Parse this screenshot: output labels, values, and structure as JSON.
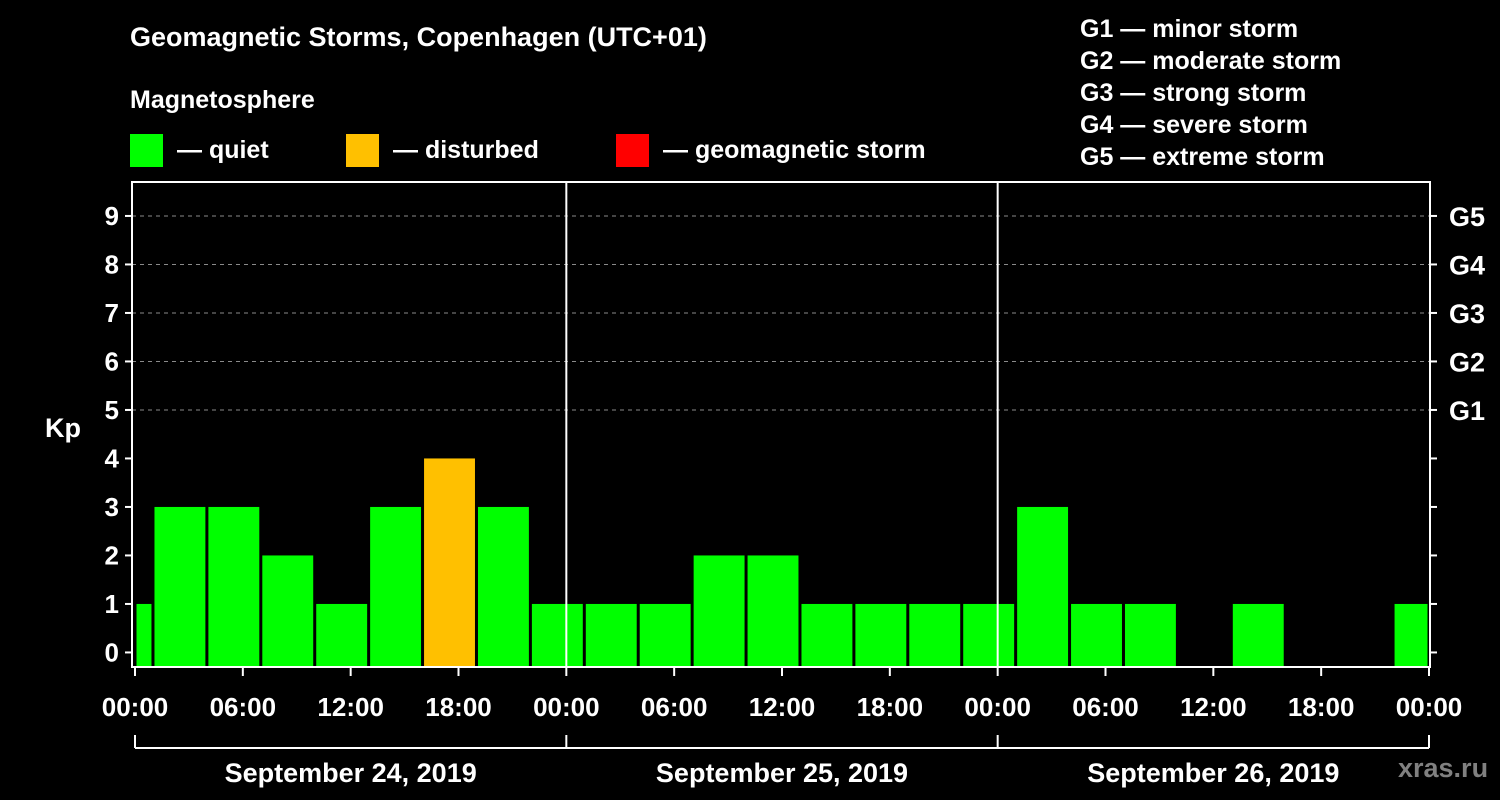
{
  "title": "Geomagnetic Storms, Copenhagen (UTC+01)",
  "legend": {
    "heading": "Magnetosphere",
    "items": [
      {
        "label": "— quiet",
        "color": "#00ff00"
      },
      {
        "label": "— disturbed",
        "color": "#ffc000"
      },
      {
        "label": "— geomagnetic storm",
        "color": "#ff0000"
      }
    ]
  },
  "storm_scale": [
    "G1 — minor storm",
    "G2 — moderate storm",
    "G3 — strong storm",
    "G4 — severe storm",
    "G5 — extreme storm"
  ],
  "watermark": "xras.ru",
  "chart_data": {
    "type": "bar",
    "ylabel": "Kp",
    "ylim": [
      -0.3,
      9.7
    ],
    "yticks": [
      0,
      1,
      2,
      3,
      4,
      5,
      6,
      7,
      8,
      9
    ],
    "right_axis_labels": [
      {
        "kp": 5,
        "label": "G1"
      },
      {
        "kp": 6,
        "label": "G2"
      },
      {
        "kp": 7,
        "label": "G3"
      },
      {
        "kp": 8,
        "label": "G4"
      },
      {
        "kp": 9,
        "label": "G5"
      }
    ],
    "xlim_hours": [
      0,
      72
    ],
    "x_tick_labels": [
      "00:00",
      "06:00",
      "12:00",
      "18:00",
      "00:00",
      "06:00",
      "12:00",
      "18:00",
      "00:00",
      "06:00",
      "12:00",
      "18:00",
      "00:00"
    ],
    "day_labels": [
      "September 24, 2019",
      "September 25, 2019",
      "September 26, 2019"
    ],
    "grid": "dashed horizontal at Kp 5-9",
    "bars": [
      {
        "start": 0,
        "end": 1,
        "kp": 1,
        "status": "quiet"
      },
      {
        "start": 1,
        "end": 4,
        "kp": 3,
        "status": "quiet"
      },
      {
        "start": 4,
        "end": 7,
        "kp": 3,
        "status": "quiet"
      },
      {
        "start": 7,
        "end": 10,
        "kp": 2,
        "status": "quiet"
      },
      {
        "start": 10,
        "end": 13,
        "kp": 1,
        "status": "quiet"
      },
      {
        "start": 13,
        "end": 16,
        "kp": 3,
        "status": "quiet"
      },
      {
        "start": 16,
        "end": 19,
        "kp": 4,
        "status": "disturbed"
      },
      {
        "start": 19,
        "end": 22,
        "kp": 3,
        "status": "quiet"
      },
      {
        "start": 22,
        "end": 25,
        "kp": 1,
        "status": "quiet"
      },
      {
        "start": 25,
        "end": 28,
        "kp": 1,
        "status": "quiet"
      },
      {
        "start": 28,
        "end": 31,
        "kp": 1,
        "status": "quiet"
      },
      {
        "start": 31,
        "end": 34,
        "kp": 2,
        "status": "quiet"
      },
      {
        "start": 34,
        "end": 37,
        "kp": 2,
        "status": "quiet"
      },
      {
        "start": 37,
        "end": 40,
        "kp": 1,
        "status": "quiet"
      },
      {
        "start": 40,
        "end": 43,
        "kp": 1,
        "status": "quiet"
      },
      {
        "start": 43,
        "end": 46,
        "kp": 1,
        "status": "quiet"
      },
      {
        "start": 46,
        "end": 49,
        "kp": 1,
        "status": "quiet"
      },
      {
        "start": 49,
        "end": 52,
        "kp": 3,
        "status": "quiet"
      },
      {
        "start": 52,
        "end": 55,
        "kp": 1,
        "status": "quiet"
      },
      {
        "start": 55,
        "end": 58,
        "kp": 1,
        "status": "quiet"
      },
      {
        "start": 61,
        "end": 64,
        "kp": 1,
        "status": "quiet"
      },
      {
        "start": 70,
        "end": 72,
        "kp": 1,
        "status": "quiet"
      }
    ]
  }
}
